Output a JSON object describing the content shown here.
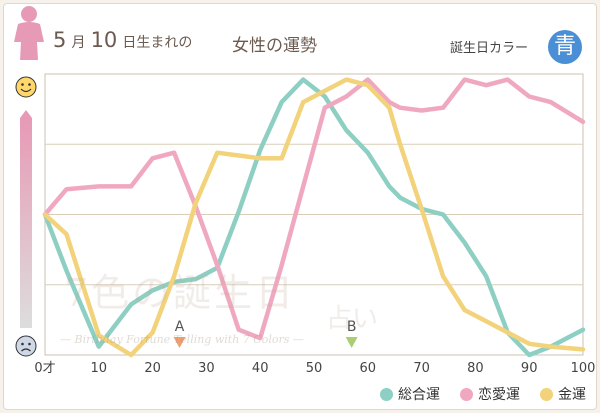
{
  "header": {
    "date_month_num": "5",
    "date_month_unit": "月",
    "date_day_num": "10",
    "date_suffix": "日生まれの",
    "title_sub": "女性の運勢",
    "birth_color_label": "誕生日カラー",
    "birth_color_char": "青",
    "birth_color_hex": "#4a8fd6"
  },
  "watermark": {
    "main": "7色の誕生日",
    "sub": "占い",
    "tag": "— Birthday Fortune Telling with 7 Colors —"
  },
  "icons": {
    "top": "smiling-face-icon",
    "bottom": "sad-face-icon"
  },
  "chart_data": {
    "type": "line",
    "x_tick_labels": [
      "0才",
      "10",
      "20",
      "30",
      "40",
      "50",
      "60",
      "70",
      "80",
      "90",
      "100"
    ],
    "x": [
      0,
      4,
      10,
      16,
      20,
      24,
      28,
      32,
      36,
      40,
      44,
      48,
      52,
      56,
      60,
      64,
      66,
      70,
      74,
      78,
      82,
      86,
      90,
      94,
      100
    ],
    "ylim": [
      0,
      100
    ],
    "grid": true,
    "legend_position": "bottom-right",
    "markers": [
      {
        "label": "A",
        "x": 25,
        "color": "#f0a070"
      },
      {
        "label": "B",
        "x": 57,
        "color": "#a8d070"
      }
    ],
    "series": [
      {
        "name": "総合運",
        "color": "#8ecfc3",
        "values": [
          50,
          30,
          3,
          18,
          23,
          26,
          27,
          31,
          51,
          73,
          90,
          98,
          92,
          80,
          72,
          60,
          56,
          52,
          50,
          40,
          28,
          8,
          0,
          3,
          9
        ]
      },
      {
        "name": "恋愛運",
        "color": "#f0a8c0",
        "values": [
          50,
          59,
          60,
          60,
          70,
          72,
          53,
          32,
          9,
          6,
          32,
          60,
          88,
          92,
          98,
          90,
          88,
          87,
          88,
          98,
          96,
          98,
          92,
          90,
          83
        ]
      },
      {
        "name": "金運",
        "color": "#f2d27a",
        "values": [
          50,
          43,
          7,
          0,
          8,
          28,
          54,
          72,
          71,
          70,
          70,
          90,
          94,
          98,
          96,
          88,
          75,
          52,
          28,
          16,
          12,
          8,
          4,
          3,
          2
        ]
      }
    ]
  }
}
